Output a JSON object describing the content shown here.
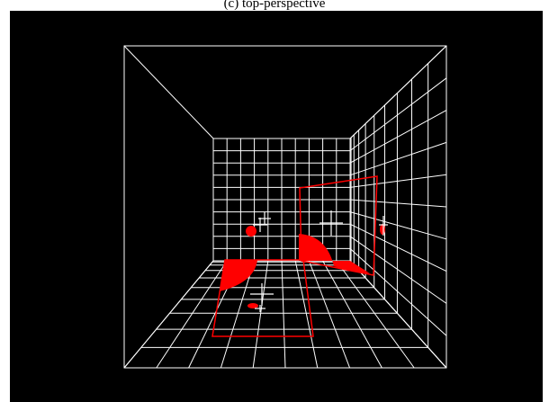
{
  "caption": "(c) top-perspective",
  "colors": {
    "background": "#000000",
    "grid": "#ffffff",
    "highlight": "#ff0000",
    "crosshair": "#ffffff"
  }
}
